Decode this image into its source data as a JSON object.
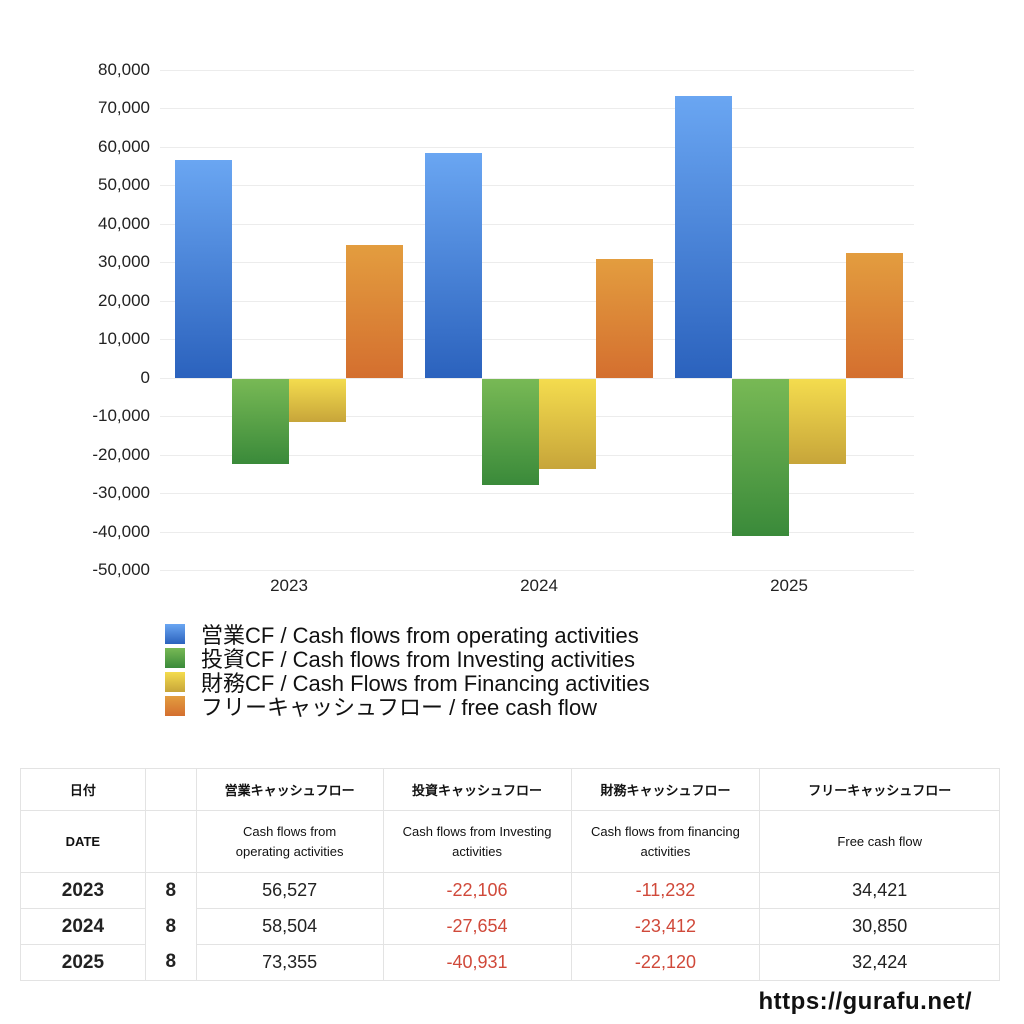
{
  "chart_data": {
    "type": "bar",
    "title": "",
    "xlabel": "",
    "ylabel": "",
    "categories": [
      "2023",
      "2024",
      "2025"
    ],
    "series": [
      {
        "name": "営業CF / Cash flows from operating activities",
        "values": [
          56527,
          58504,
          73355
        ],
        "color_top": "#6aa6f2",
        "color_bottom": "#2b62bd"
      },
      {
        "name": "投資CF / Cash flows from Investing activities",
        "values": [
          -22106,
          -27654,
          -40931
        ],
        "color_top": "#78b955",
        "color_bottom": "#3a8a3a"
      },
      {
        "name": "財務CF / Cash Flows from Financing activities",
        "values": [
          -11232,
          -23412,
          -22120
        ],
        "color_top": "#f4dc4e",
        "color_bottom": "#c7a53a"
      },
      {
        "name": "フリーキャッシュフロー / free cash flow",
        "values": [
          34421,
          30850,
          32424
        ],
        "color_top": "#e39d3f",
        "color_bottom": "#d46f2f"
      }
    ],
    "ylim": [
      -50000,
      80000
    ],
    "yticks": [
      "80,000",
      "70,000",
      "60,000",
      "50,000",
      "40,000",
      "30,000",
      "20,000",
      "10,000",
      "0",
      "-10,000",
      "-20,000",
      "-30,000",
      "-40,000",
      "-50,000"
    ],
    "grid": true,
    "legend_position": "bottom"
  },
  "legend": [
    {
      "label": "営業CF / Cash flows from operating activities"
    },
    {
      "label": "投資CF / Cash flows from Investing activities"
    },
    {
      "label": "財務CF / Cash Flows from Financing activities"
    },
    {
      "label": "フリーキャッシュフロー / free cash flow"
    }
  ],
  "table": {
    "header_jp": [
      "日付",
      "",
      "営業キャッシュフロー",
      "投資キャッシュフロー",
      "財務キャッシュフロー",
      "フリーキャッシュフロー"
    ],
    "header_en": [
      "DATE",
      "",
      "Cash flows from operating activities",
      "Cash flows from Investing activities",
      "Cash flows from financing activities",
      "Free cash flow"
    ],
    "rows": [
      {
        "year": "2023",
        "month": "8",
        "operating": "56,527",
        "investing": "-22,106",
        "financing": "-11,232",
        "free": "34,421"
      },
      {
        "year": "2024",
        "month": "8",
        "operating": "58,504",
        "investing": "-27,654",
        "financing": "-23,412",
        "free": "30,850"
      },
      {
        "year": "2025",
        "month": "8",
        "operating": "73,355",
        "investing": "-40,931",
        "financing": "-22,120",
        "free": "32,424"
      }
    ]
  },
  "footer": {
    "url": "https://gurafu.net/"
  }
}
